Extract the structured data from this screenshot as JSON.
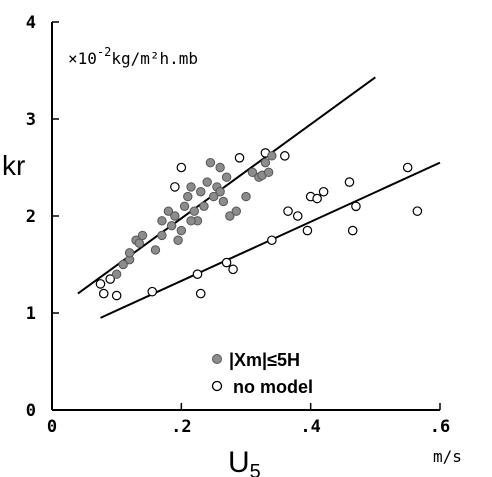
{
  "chart_data": {
    "type": "scatter",
    "title": "",
    "xlabel": "U",
    "xlabel_sub": "5",
    "ylabel": "kr",
    "x_unit": "m/s",
    "y_unit_note_prefix": "×10",
    "y_unit_note_exp": "-2",
    "y_unit_note_suffix": "kg/m²h.mb",
    "xlim": [
      0,
      0.6
    ],
    "ylim": [
      0,
      4
    ],
    "x_ticks": [
      {
        "value": 0,
        "label": "0"
      },
      {
        "value": 0.2,
        "label": ".2"
      },
      {
        "value": 0.4,
        "label": ".4"
      },
      {
        "value": 0.6,
        "label": ".6"
      }
    ],
    "y_ticks": [
      {
        "value": 0,
        "label": "0"
      },
      {
        "value": 1,
        "label": "1"
      },
      {
        "value": 2,
        "label": "2"
      },
      {
        "value": 3,
        "label": "3"
      },
      {
        "value": 4,
        "label": "4"
      }
    ],
    "grid": false,
    "legend_position": "bottom-right",
    "series": [
      {
        "name": "|Xm|≤5H",
        "marker": "filled-circle",
        "color": "#8c8c8c",
        "points": [
          [
            0.1,
            1.4
          ],
          [
            0.11,
            1.5
          ],
          [
            0.12,
            1.55
          ],
          [
            0.13,
            1.75
          ],
          [
            0.14,
            1.8
          ],
          [
            0.135,
            1.72
          ],
          [
            0.16,
            1.65
          ],
          [
            0.17,
            1.95
          ],
          [
            0.18,
            2.05
          ],
          [
            0.185,
            1.9
          ],
          [
            0.19,
            2.0
          ],
          [
            0.195,
            1.75
          ],
          [
            0.2,
            1.85
          ],
          [
            0.21,
            2.2
          ],
          [
            0.215,
            2.3
          ],
          [
            0.22,
            2.05
          ],
          [
            0.225,
            1.95
          ],
          [
            0.23,
            2.25
          ],
          [
            0.235,
            2.1
          ],
          [
            0.24,
            2.35
          ],
          [
            0.245,
            2.55
          ],
          [
            0.25,
            2.2
          ],
          [
            0.255,
            2.3
          ],
          [
            0.26,
            2.25
          ],
          [
            0.265,
            2.15
          ],
          [
            0.27,
            2.4
          ],
          [
            0.275,
            2.0
          ],
          [
            0.285,
            2.05
          ],
          [
            0.3,
            2.2
          ],
          [
            0.31,
            2.45
          ],
          [
            0.32,
            2.4
          ],
          [
            0.325,
            2.42
          ],
          [
            0.33,
            2.55
          ],
          [
            0.335,
            2.45
          ],
          [
            0.34,
            2.62
          ],
          [
            0.215,
            1.95
          ],
          [
            0.17,
            1.8
          ],
          [
            0.12,
            1.62
          ],
          [
            0.26,
            2.5
          ],
          [
            0.205,
            2.1
          ]
        ]
      },
      {
        "name": "no model",
        "marker": "open-circle",
        "color": "#000000",
        "points": [
          [
            0.075,
            1.3
          ],
          [
            0.08,
            1.2
          ],
          [
            0.09,
            1.35
          ],
          [
            0.1,
            1.18
          ],
          [
            0.155,
            1.22
          ],
          [
            0.19,
            2.3
          ],
          [
            0.225,
            1.4
          ],
          [
            0.23,
            1.2
          ],
          [
            0.27,
            1.52
          ],
          [
            0.28,
            1.45
          ],
          [
            0.29,
            2.6
          ],
          [
            0.33,
            2.65
          ],
          [
            0.34,
            1.75
          ],
          [
            0.36,
            2.62
          ],
          [
            0.365,
            2.05
          ],
          [
            0.38,
            2.0
          ],
          [
            0.395,
            1.85
          ],
          [
            0.4,
            2.2
          ],
          [
            0.41,
            2.18
          ],
          [
            0.42,
            2.25
          ],
          [
            0.46,
            2.35
          ],
          [
            0.465,
            1.85
          ],
          [
            0.47,
            2.1
          ],
          [
            0.55,
            2.5
          ],
          [
            0.565,
            2.05
          ],
          [
            0.2,
            2.5
          ]
        ]
      }
    ],
    "fit_lines": [
      {
        "series": "|Xm|≤5H",
        "x": [
          0.04,
          0.5
        ],
        "y": [
          1.2,
          3.43
        ]
      },
      {
        "series": "no model",
        "x": [
          0.075,
          0.6
        ],
        "y": [
          0.95,
          2.55
        ]
      }
    ]
  }
}
